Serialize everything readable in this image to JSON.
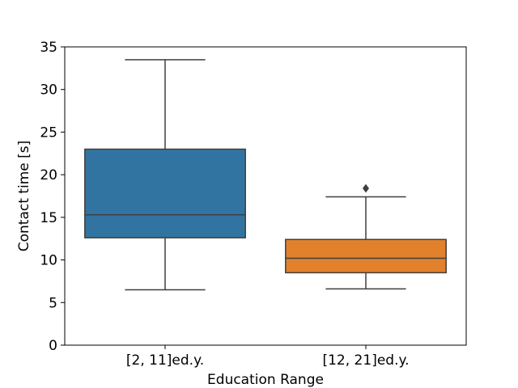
{
  "chart_data": {
    "type": "box",
    "title": "",
    "xlabel": "Education Range",
    "ylabel": "Contact time [s]",
    "ylim": [
      0,
      35
    ],
    "yticks": [
      0,
      5,
      10,
      15,
      20,
      25,
      30,
      35
    ],
    "grid": false,
    "categories": [
      "[2, 11]ed.y.",
      "[12, 21]ed.y."
    ],
    "boxes": [
      {
        "category": "[2, 11]ed.y.",
        "whisker_low": 6.5,
        "q1": 12.6,
        "median": 15.3,
        "q3": 23.0,
        "whisker_high": 33.5,
        "outliers": [],
        "color": "#3274a1"
      },
      {
        "category": "[12, 21]ed.y.",
        "whisker_low": 6.6,
        "q1": 8.5,
        "median": 10.2,
        "q3": 12.4,
        "whisker_high": 17.4,
        "outliers": [
          18.4
        ],
        "color": "#e1812c"
      }
    ]
  }
}
